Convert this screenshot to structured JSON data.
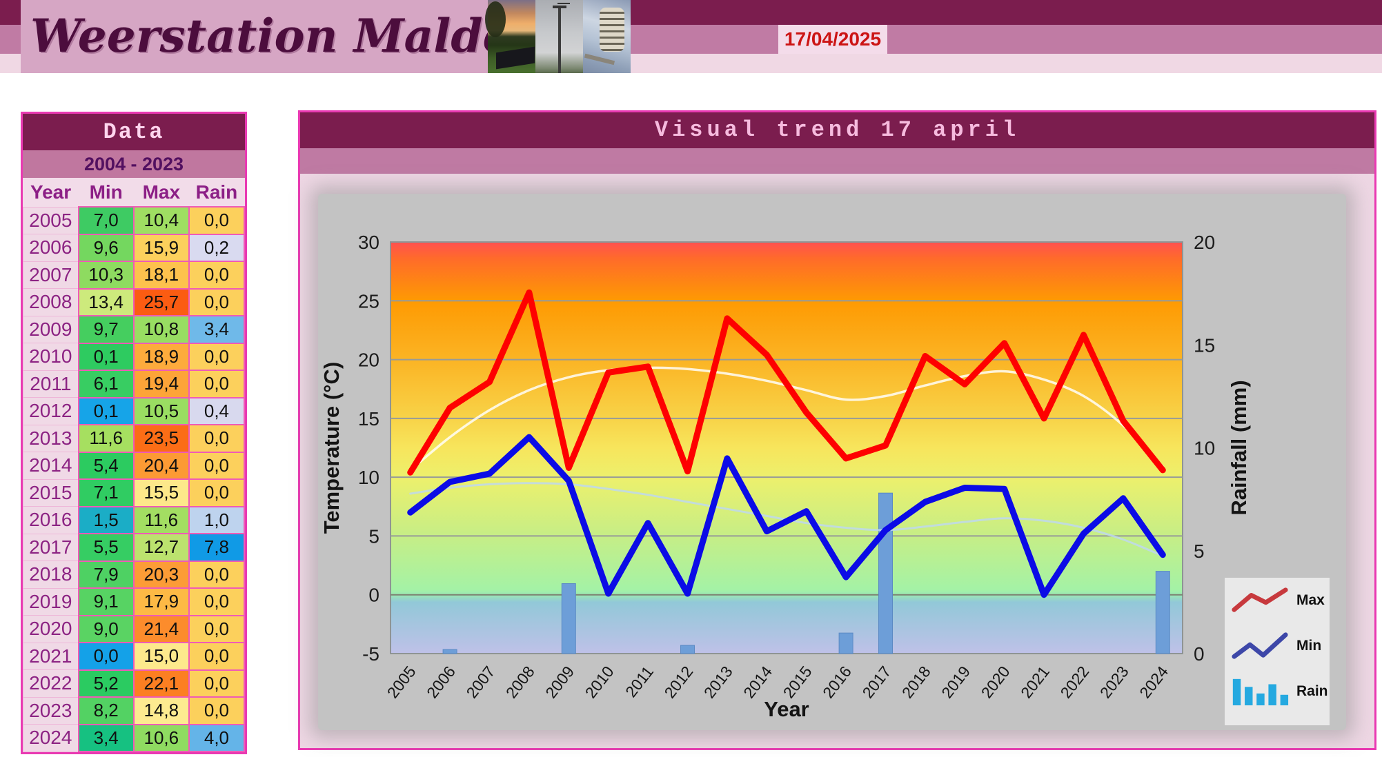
{
  "header": {
    "site_title": "Weerstation Malderen",
    "date": "17/04/2025",
    "photos": [
      "sunset-over-garden",
      "anemometer-pole",
      "radiation-shield"
    ],
    "colors": {
      "maroon": "#7b1d4e",
      "mauve": "#c07ba4",
      "light_pink": "#f0d8e4",
      "masthead_pink": "#d6a6c4",
      "date_red": "#cc1414"
    }
  },
  "table": {
    "title": "Data",
    "subtitle": "2004 - 2023",
    "columns": [
      "Year",
      "Min",
      "Max",
      "Rain"
    ],
    "rows": [
      {
        "year": "2005",
        "min": "7,0",
        "min_color": "#3ecb63",
        "max": "10,4",
        "max_color": "#9fde62",
        "rain": "0,0",
        "rain_color": "#fcd05c"
      },
      {
        "year": "2006",
        "min": "9,6",
        "min_color": "#74d75f",
        "max": "15,9",
        "max_color": "#fcd05c",
        "rain": "0,2",
        "rain_color": "#d9daf0"
      },
      {
        "year": "2007",
        "min": "10,3",
        "min_color": "#8edb60",
        "max": "18,1",
        "max_color": "#fdc24d",
        "rain": "0,0",
        "rain_color": "#fcd05c"
      },
      {
        "year": "2008",
        "min": "13,4",
        "min_color": "#cdea7c",
        "max": "25,7",
        "max_color": "#fb5c12",
        "rain": "0,0",
        "rain_color": "#fcd05c"
      },
      {
        "year": "2009",
        "min": "9,7",
        "min_color": "#45ce5f",
        "max": "10,8",
        "max_color": "#98dd62",
        "rain": "3,4",
        "rain_color": "#6fb9e9"
      },
      {
        "year": "2010",
        "min": "0,1",
        "min_color": "#2ecb60",
        "max": "18,9",
        "max_color": "#fdab3c",
        "rain": "0,0",
        "rain_color": "#fcd05c"
      },
      {
        "year": "2011",
        "min": "6,1",
        "min_color": "#38cd62",
        "max": "19,4",
        "max_color": "#fda438",
        "rain": "0,0",
        "rain_color": "#fcd05c"
      },
      {
        "year": "2012",
        "min": "0,1",
        "min_color": "#16a4e8",
        "max": "10,5",
        "max_color": "#9add62",
        "rain": "0,4",
        "rain_color": "#d8d9ee"
      },
      {
        "year": "2013",
        "min": "11,6",
        "min_color": "#a6df60",
        "max": "23,5",
        "max_color": "#fb6d16",
        "rain": "0,0",
        "rain_color": "#fcd05c"
      },
      {
        "year": "2014",
        "min": "5,4",
        "min_color": "#2ccb60",
        "max": "20,4",
        "max_color": "#fc9a34",
        "rain": "0,0",
        "rain_color": "#fcd05c"
      },
      {
        "year": "2015",
        "min": "7,1",
        "min_color": "#30cc62",
        "max": "15,5",
        "max_color": "#fde88a",
        "rain": "0,0",
        "rain_color": "#fcd05c"
      },
      {
        "year": "2016",
        "min": "1,5",
        "min_color": "#1badc6",
        "max": "11,6",
        "max_color": "#a3de62",
        "rain": "1,0",
        "rain_color": "#bed3ee"
      },
      {
        "year": "2017",
        "min": "5,5",
        "min_color": "#36cd63",
        "max": "12,7",
        "max_color": "#bce26e",
        "rain": "7,8",
        "rain_color": "#109ae6"
      },
      {
        "year": "2018",
        "min": "7,9",
        "min_color": "#4ed163",
        "max": "20,3",
        "max_color": "#fc9c36",
        "rain": "0,0",
        "rain_color": "#fcd05c"
      },
      {
        "year": "2019",
        "min": "9,1",
        "min_color": "#57d363",
        "max": "17,9",
        "max_color": "#fdb945",
        "rain": "0,0",
        "rain_color": "#fcd05c"
      },
      {
        "year": "2020",
        "min": "9,0",
        "min_color": "#5ad363",
        "max": "21,4",
        "max_color": "#fc8c2c",
        "rain": "0,0",
        "rain_color": "#fcd05c"
      },
      {
        "year": "2021",
        "min": "0,0",
        "min_color": "#14a1e8",
        "max": "15,0",
        "max_color": "#fde98c",
        "rain": "0,0",
        "rain_color": "#fcd05c"
      },
      {
        "year": "2022",
        "min": "5,2",
        "min_color": "#2bcb61",
        "max": "22,1",
        "max_color": "#fc7f22",
        "rain": "0,0",
        "rain_color": "#fcd05c"
      },
      {
        "year": "2023",
        "min": "8,2",
        "min_color": "#53d263",
        "max": "14,8",
        "max_color": "#fdeb90",
        "rain": "0,0",
        "rain_color": "#fcd05c"
      },
      {
        "year": "2024",
        "min": "3,4",
        "min_color": "#16c181",
        "max": "10,6",
        "max_color": "#8fdb61",
        "rain": "4,0",
        "rain_color": "#64b4e8"
      }
    ]
  },
  "chart": {
    "legend": [
      {
        "label": "Max",
        "color": "#c7393d"
      },
      {
        "label": "Min",
        "color": "#3d47a8"
      },
      {
        "label": "Rain",
        "color": "#25a9e0"
      }
    ]
  },
  "chart_data": {
    "type": "line+bar combo",
    "title": "Visual trend 17 april",
    "categories": [
      "2005",
      "2006",
      "2007",
      "2008",
      "2009",
      "2010",
      "2011",
      "2012",
      "2013",
      "2014",
      "2015",
      "2016",
      "2017",
      "2018",
      "2019",
      "2020",
      "2021",
      "2022",
      "2023",
      "2024"
    ],
    "xlabel": "Year",
    "left_axis": {
      "title": "Temperature (°C)",
      "min": -5,
      "max": 30,
      "step": 5
    },
    "right_axis": {
      "title": "Rainfall (mm)",
      "min": 0,
      "max": 20,
      "step": 5
    },
    "grid": true,
    "legend_position": "bottom-right",
    "series": [
      {
        "name": "Max",
        "kind": "line",
        "axis": "temp",
        "color": "#fe0000",
        "width": 9,
        "values": [
          10.4,
          15.9,
          18.1,
          25.7,
          10.8,
          18.9,
          19.4,
          10.5,
          23.5,
          20.4,
          15.5,
          11.6,
          12.7,
          20.3,
          17.9,
          21.4,
          15.0,
          22.1,
          14.8,
          10.6
        ]
      },
      {
        "name": "Min",
        "kind": "line",
        "axis": "temp",
        "color": "#0b0be6",
        "width": 9,
        "values": [
          7.0,
          9.6,
          10.3,
          13.4,
          9.7,
          0.1,
          6.1,
          0.1,
          11.6,
          5.4,
          7.1,
          1.5,
          5.5,
          7.9,
          9.1,
          9.0,
          0.0,
          5.2,
          8.2,
          3.4
        ]
      },
      {
        "name": "Rain",
        "kind": "bar",
        "axis": "rain",
        "color": "#6d9ed8",
        "values": [
          0,
          0.2,
          0,
          0,
          3.4,
          0,
          0,
          0.4,
          0,
          0,
          0,
          1.0,
          7.8,
          0,
          0,
          0,
          0,
          0,
          0,
          4.0
        ]
      },
      {
        "name": "Max trendline",
        "kind": "trend",
        "axis": "temp",
        "color": "rgba(255,255,255,0.82)",
        "width": 3.5,
        "values": [
          10.6,
          13.4,
          15.7,
          17.4,
          18.5,
          19.1,
          19.3,
          19.2,
          18.8,
          18.2,
          17.4,
          16.6,
          16.9,
          17.8,
          18.6,
          19.0,
          18.3,
          16.9,
          14.4,
          10.9
        ]
      },
      {
        "name": "Min trendline",
        "kind": "trend",
        "axis": "temp",
        "color": "rgba(190,216,236,0.85)",
        "width": 3,
        "values": [
          8.6,
          9.1,
          9.4,
          9.5,
          9.4,
          9.0,
          8.5,
          7.9,
          7.3,
          6.7,
          6.1,
          5.7,
          5.5,
          5.8,
          6.2,
          6.5,
          6.3,
          5.7,
          4.7,
          3.3
        ]
      }
    ]
  }
}
